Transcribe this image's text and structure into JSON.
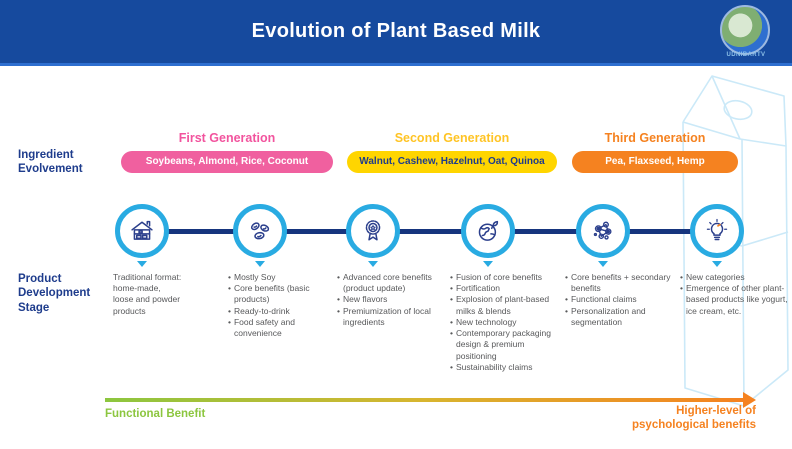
{
  "header": {
    "title": "Evolution of Plant Based Milk",
    "logo_caption": "UDNIBARTV"
  },
  "labels": {
    "ingredient": "Ingredient\nEvolvement",
    "product": "Product\nDevelopment\nStage"
  },
  "generations": [
    {
      "name": "First Generation",
      "ingredients": "Soybeans, Almond, Rice, Coconut",
      "color": "#F0609F"
    },
    {
      "name": "Second Generation",
      "ingredients": "Walnut, Cashew, Hazelnut, Oat, Quinoa",
      "color": "#FFD500"
    },
    {
      "name": "Third Generation",
      "ingredients": "Pea, Flaxseed, Hemp",
      "color": "#F58220"
    }
  ],
  "stages": [
    {
      "icon": "home-icon",
      "text": "Traditional format:\nhome-made,\nloose and powder\nproducts"
    },
    {
      "icon": "beans-icon",
      "bullets": [
        "Mostly Soy",
        "Core benefits (basic products)",
        "Ready-to-drink",
        "Food safety and convenience"
      ]
    },
    {
      "icon": "award-ribbon-icon",
      "bullets": [
        "Advanced core benefits (product update)",
        "New flavors",
        "Premiumization of local ingredients"
      ]
    },
    {
      "icon": "globe-leaf-icon",
      "bullets": [
        "Fusion of core benefits",
        "Fortification",
        "Explosion of plant-based milks & blends",
        "New technology",
        "Contemporary packaging design & premium positioning",
        "Sustainability claims"
      ]
    },
    {
      "icon": "network-icon",
      "bullets": [
        "Core benefits + secondary benefits",
        "Functional claims",
        "Personalization and segmentation"
      ]
    },
    {
      "icon": "lightbulb-icon",
      "bullets": [
        "New categories",
        "Emergence of other plant-based products like yogurt, ice cream, etc."
      ]
    }
  ],
  "axis": {
    "left_label": "Functional Benefit",
    "right_label": "Higher-level of\npsychological benefits",
    "left_color": "#8CC63F",
    "right_color": "#F58220"
  },
  "colors": {
    "header_bg": "#164A9E",
    "navy": "#1E3C8C",
    "timeline": "#16357E",
    "ring_cyan": "#29ABE2",
    "body_text": "#58595B",
    "carton_outline": "#CBE9F8"
  }
}
